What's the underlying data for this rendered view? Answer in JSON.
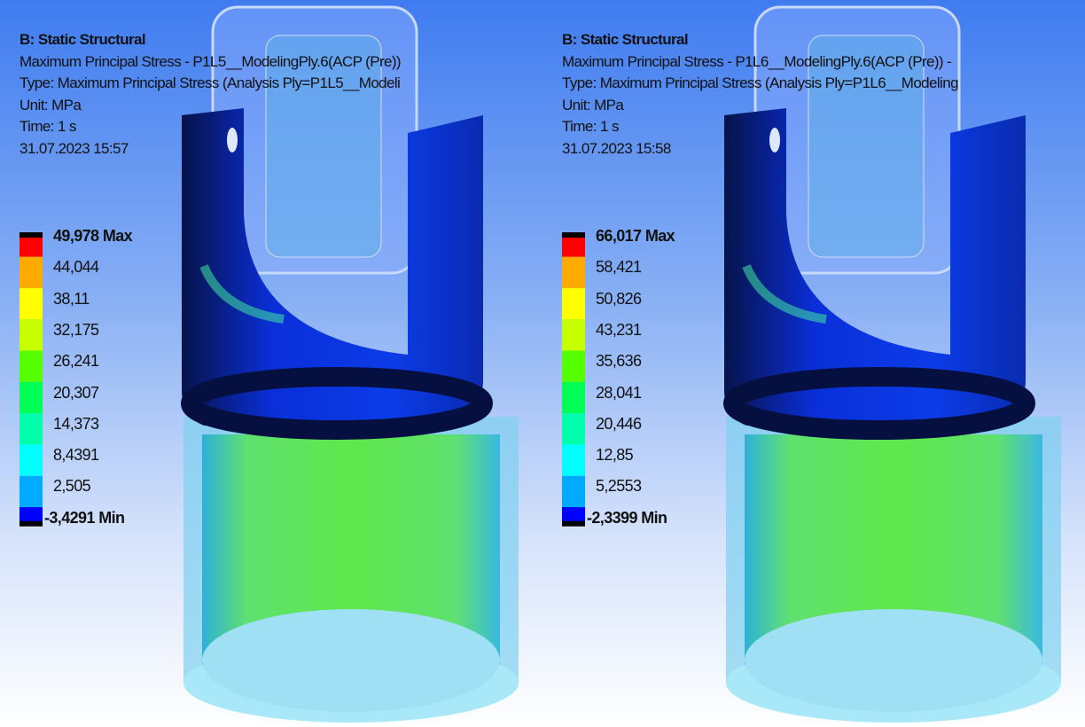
{
  "panels": [
    {
      "header": [
        "B: Static Structural",
        "Maximum Principal Stress - P1L5__ModelingPly.6(ACP (Pre))",
        "Type: Maximum Principal Stress (Analysis Ply=P1L5__Modeli",
        "Unit: MPa",
        "Time: 1 s",
        "31.07.2023 15:57"
      ],
      "legend": [
        "49,978 Max",
        "44,044",
        "38,11",
        "32,175",
        "26,241",
        "20,307",
        "14,373",
        "8,4391",
        "2,505",
        "-3,4291 Min"
      ]
    },
    {
      "header": [
        "B: Static Structural",
        "Maximum Principal Stress - P1L6__ModelingPly.6(ACP (Pre)) -",
        "Type: Maximum Principal Stress (Analysis Ply=P1L6__Modeling",
        "Unit: MPa",
        "Time: 1 s",
        "31.07.2023 15:58"
      ],
      "legend": [
        "66,017 Max",
        "58,421",
        "50,826",
        "43,231",
        "35,636",
        "28,041",
        "20,446",
        "12,85",
        "5,2553",
        "-2,3399 Min"
      ]
    }
  ]
}
